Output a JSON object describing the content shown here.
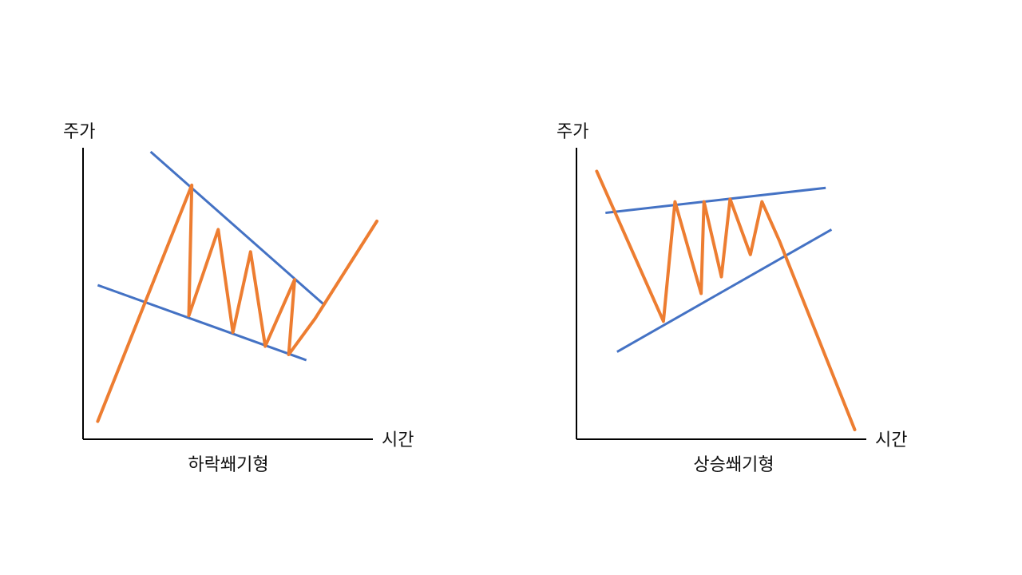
{
  "colors": {
    "price": "#ED7D31",
    "trendline": "#4472C4",
    "axis": "#000000"
  },
  "left_diagram": {
    "y_axis_label": "주가",
    "x_axis_label": "시간",
    "caption": "하락쐐기형",
    "price_path": [
      [
        0.05,
        0.03
      ],
      [
        0.37,
        0.88
      ],
      [
        0.36,
        0.41
      ],
      [
        0.46,
        0.72
      ],
      [
        0.51,
        0.35
      ],
      [
        0.57,
        0.64
      ],
      [
        0.62,
        0.3
      ],
      [
        0.72,
        0.54
      ],
      [
        0.7,
        0.27
      ],
      [
        0.79,
        0.4
      ],
      [
        1.0,
        0.75
      ]
    ],
    "upper_trendline": [
      [
        0.23,
        1.0
      ],
      [
        0.82,
        0.45
      ]
    ],
    "lower_trendline": [
      [
        0.05,
        0.52
      ],
      [
        0.76,
        0.25
      ]
    ]
  },
  "right_diagram": {
    "y_axis_label": "주가",
    "x_axis_label": "시간",
    "caption": "상승쐐기형",
    "price_path": [
      [
        0.07,
        0.93
      ],
      [
        0.3,
        0.39
      ],
      [
        0.34,
        0.82
      ],
      [
        0.43,
        0.49
      ],
      [
        0.44,
        0.82
      ],
      [
        0.5,
        0.55
      ],
      [
        0.53,
        0.83
      ],
      [
        0.6,
        0.63
      ],
      [
        0.64,
        0.82
      ],
      [
        0.7,
        0.68
      ],
      [
        0.96,
        0.0
      ]
    ],
    "upper_trendline": [
      [
        0.1,
        0.78
      ],
      [
        0.86,
        0.87
      ]
    ],
    "lower_trendline": [
      [
        0.14,
        0.28
      ],
      [
        0.88,
        0.72
      ]
    ]
  }
}
